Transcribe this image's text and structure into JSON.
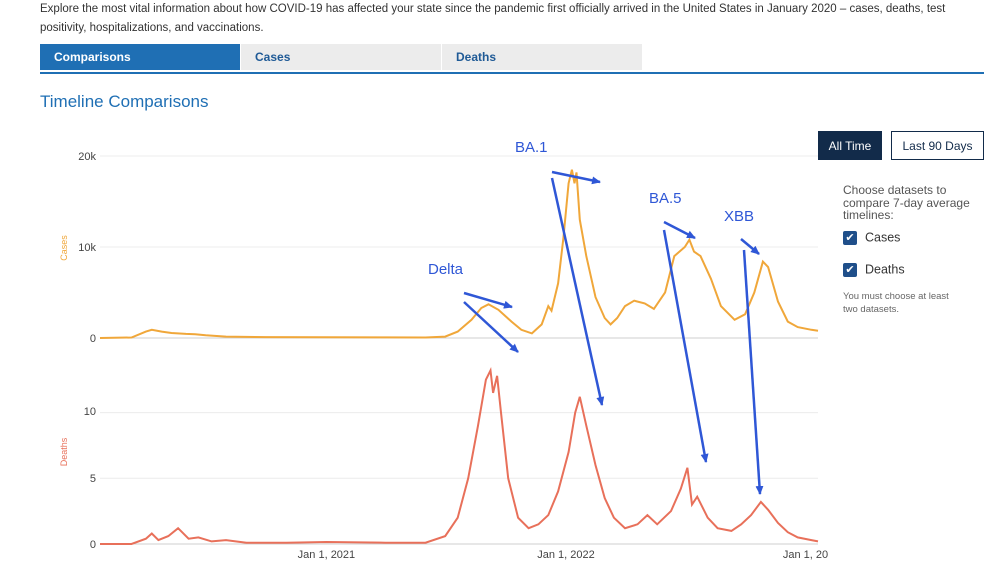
{
  "intro": {
    "line1": "Explore the most vital information about how COVID-19 has affected your state since the pandemic first officially arrived in the United States in January 2020 – cases, deaths, test",
    "line2": "positivity, hospitalizations, and vaccinations."
  },
  "tabs": [
    {
      "label": "Comparisons",
      "active": true
    },
    {
      "label": "Cases",
      "active": false
    },
    {
      "label": "Deaths",
      "active": false
    }
  ],
  "section_title": "Timeline Comparisons",
  "buttons": {
    "all_time": "All Time",
    "last_90": "Last 90 Days"
  },
  "sidebar": {
    "prompt": "Choose datasets to compare 7-day average timelines:",
    "datasets": [
      {
        "label": "Cases",
        "checked": true
      },
      {
        "label": "Deaths",
        "checked": true
      }
    ],
    "note": "You must choose at least two datasets.",
    "check_icon": "checkmark-icon"
  },
  "colors": {
    "cases": "#f0a73a",
    "deaths": "#e8705a",
    "annotation": "#2f57d6",
    "accent": "#1f6fb4"
  },
  "chart_data": [
    {
      "type": "line",
      "ylabel": "Cases",
      "yticks": [
        "0",
        "10k",
        "20k"
      ],
      "ylim": [
        0,
        20000
      ],
      "xlim": [
        "2020-01-22",
        "2023-01-20"
      ],
      "grid": true,
      "series": [
        {
          "values": [
            [
              "2020-01-22",
              0
            ],
            [
              "2020-03-10",
              50
            ],
            [
              "2020-04-01",
              700
            ],
            [
              "2020-04-10",
              900
            ],
            [
              "2020-04-25",
              700
            ],
            [
              "2020-05-10",
              550
            ],
            [
              "2020-06-01",
              450
            ],
            [
              "2020-06-15",
              420
            ],
            [
              "2020-07-01",
              300
            ],
            [
              "2020-08-01",
              150
            ],
            [
              "2020-10-01",
              100
            ],
            [
              "2021-01-01",
              80
            ],
            [
              "2021-04-01",
              70
            ],
            [
              "2021-06-01",
              60
            ],
            [
              "2021-07-01",
              150
            ],
            [
              "2021-07-20",
              700
            ],
            [
              "2021-08-10",
              2000
            ],
            [
              "2021-08-25",
              3300
            ],
            [
              "2021-09-05",
              3700
            ],
            [
              "2021-09-20",
              3100
            ],
            [
              "2021-10-10",
              1800
            ],
            [
              "2021-10-25",
              900
            ],
            [
              "2021-11-10",
              500
            ],
            [
              "2021-11-25",
              1500
            ],
            [
              "2021-12-05",
              3500
            ],
            [
              "2021-12-10",
              3000
            ],
            [
              "2021-12-20",
              6000
            ],
            [
              "2021-12-28",
              11000
            ],
            [
              "2022-01-05",
              17000
            ],
            [
              "2022-01-10",
              18500
            ],
            [
              "2022-01-14",
              17000
            ],
            [
              "2022-01-17",
              18200
            ],
            [
              "2022-01-22",
              13000
            ],
            [
              "2022-02-01",
              9000
            ],
            [
              "2022-02-15",
              4500
            ],
            [
              "2022-03-01",
              2200
            ],
            [
              "2022-03-10",
              1500
            ],
            [
              "2022-03-20",
              2200
            ],
            [
              "2022-04-01",
              3500
            ],
            [
              "2022-04-15",
              4100
            ],
            [
              "2022-05-01",
              3800
            ],
            [
              "2022-05-15",
              3200
            ],
            [
              "2022-06-01",
              5000
            ],
            [
              "2022-06-15",
              9000
            ],
            [
              "2022-07-01",
              10000
            ],
            [
              "2022-07-08",
              10800
            ],
            [
              "2022-07-15",
              9500
            ],
            [
              "2022-07-25",
              9000
            ],
            [
              "2022-08-10",
              6500
            ],
            [
              "2022-08-25",
              3500
            ],
            [
              "2022-09-15",
              2000
            ],
            [
              "2022-10-01",
              2600
            ],
            [
              "2022-10-15",
              5000
            ],
            [
              "2022-10-28",
              8400
            ],
            [
              "2022-11-05",
              7800
            ],
            [
              "2022-11-20",
              4000
            ],
            [
              "2022-12-05",
              1800
            ],
            [
              "2022-12-20",
              1200
            ],
            [
              "2023-01-10",
              900
            ],
            [
              "2023-01-20",
              800
            ]
          ]
        }
      ]
    },
    {
      "type": "line",
      "ylabel": "Deaths",
      "yticks": [
        "0",
        "5",
        "10"
      ],
      "ylim": [
        0,
        14
      ],
      "xticks": [
        "Jan 1, 2021",
        "Jan 1, 2022",
        "Jan 1, 20"
      ],
      "xtick_dates": [
        "2021-01-01",
        "2022-01-01",
        "2023-01-01"
      ],
      "xlim": [
        "2020-01-22",
        "2023-01-20"
      ],
      "grid": true,
      "series": [
        {
          "values": [
            [
              "2020-01-22",
              0
            ],
            [
              "2020-03-10",
              0
            ],
            [
              "2020-04-01",
              0.4
            ],
            [
              "2020-04-10",
              0.8
            ],
            [
              "2020-04-20",
              0.3
            ],
            [
              "2020-05-05",
              0.6
            ],
            [
              "2020-05-20",
              1.2
            ],
            [
              "2020-06-05",
              0.4
            ],
            [
              "2020-06-20",
              0.5
            ],
            [
              "2020-07-10",
              0.2
            ],
            [
              "2020-08-01",
              0.3
            ],
            [
              "2020-09-01",
              0.1
            ],
            [
              "2020-11-01",
              0.1
            ],
            [
              "2021-01-01",
              0.15
            ],
            [
              "2021-04-01",
              0.1
            ],
            [
              "2021-06-01",
              0.1
            ],
            [
              "2021-07-01",
              0.6
            ],
            [
              "2021-07-20",
              2
            ],
            [
              "2021-08-05",
              5
            ],
            [
              "2021-08-20",
              9
            ],
            [
              "2021-09-01",
              12.5
            ],
            [
              "2021-09-08",
              13.2
            ],
            [
              "2021-09-12",
              11.5
            ],
            [
              "2021-09-18",
              12.8
            ],
            [
              "2021-09-24",
              10
            ],
            [
              "2021-10-05",
              5
            ],
            [
              "2021-10-20",
              2
            ],
            [
              "2021-11-05",
              1.2
            ],
            [
              "2021-11-20",
              1.5
            ],
            [
              "2021-12-05",
              2.2
            ],
            [
              "2021-12-20",
              4
            ],
            [
              "2022-01-05",
              7
            ],
            [
              "2022-01-15",
              10
            ],
            [
              "2022-01-22",
              11.2
            ],
            [
              "2022-02-01",
              9
            ],
            [
              "2022-02-15",
              6
            ],
            [
              "2022-03-01",
              3.5
            ],
            [
              "2022-03-15",
              2
            ],
            [
              "2022-04-01",
              1.2
            ],
            [
              "2022-04-20",
              1.5
            ],
            [
              "2022-05-05",
              2.2
            ],
            [
              "2022-05-20",
              1.5
            ],
            [
              "2022-06-10",
              2.5
            ],
            [
              "2022-06-25",
              4.2
            ],
            [
              "2022-07-05",
              5.8
            ],
            [
              "2022-07-12",
              3
            ],
            [
              "2022-07-20",
              3.6
            ],
            [
              "2022-08-05",
              2
            ],
            [
              "2022-08-20",
              1.2
            ],
            [
              "2022-09-10",
              1
            ],
            [
              "2022-09-25",
              1.5
            ],
            [
              "2022-10-10",
              2.2
            ],
            [
              "2022-10-25",
              3.2
            ],
            [
              "2022-11-05",
              2.6
            ],
            [
              "2022-11-20",
              1.6
            ],
            [
              "2022-12-05",
              0.9
            ],
            [
              "2022-12-20",
              0.5
            ],
            [
              "2023-01-10",
              0.3
            ],
            [
              "2023-01-20",
              0.2
            ]
          ]
        }
      ]
    }
  ],
  "annotations": [
    {
      "label": "Delta"
    },
    {
      "label": "BA.1"
    },
    {
      "label": "BA.5"
    },
    {
      "label": "XBB"
    }
  ]
}
